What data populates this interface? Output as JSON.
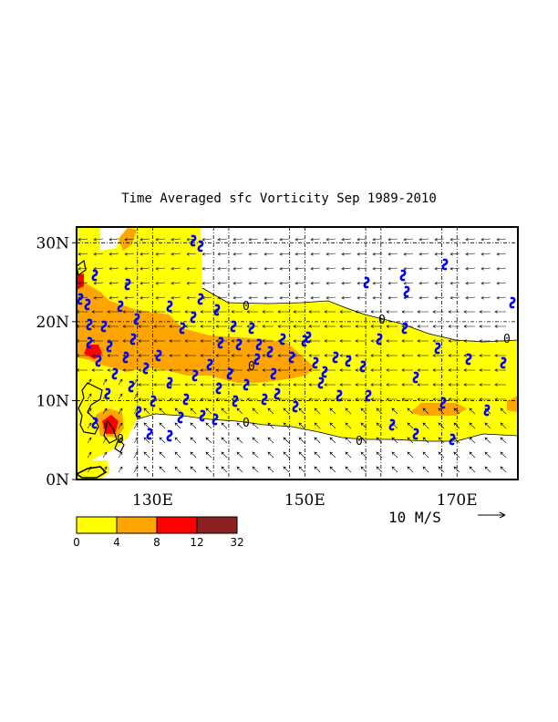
{
  "title": "Time Averaged sfc Vorticity  Sep 1989-2010",
  "map": {
    "lat_range": [
      0,
      32
    ],
    "lon_range": [
      120,
      178
    ],
    "y_ticks": [
      {
        "lat": 0,
        "label": "0N"
      },
      {
        "lat": 10,
        "label": "10N"
      },
      {
        "lat": 20,
        "label": "20N"
      },
      {
        "lat": 30,
        "label": "30N"
      }
    ],
    "x_ticks": [
      {
        "lon": 130,
        "label": "130E"
      },
      {
        "lon": 150,
        "label": "150E"
      },
      {
        "lon": 170,
        "label": "170E"
      }
    ],
    "grid_lons": [
      128,
      130,
      138,
      140,
      148,
      150,
      158,
      160,
      168,
      170
    ],
    "grid_lats": [
      10,
      20,
      30
    ],
    "contour_label": "0",
    "colors": {
      "yellow": "#ffff00",
      "orange": "#ffa500",
      "red": "#ff0000",
      "darkred": "#8b2222",
      "typhoon": "#0000ff"
    }
  },
  "legend": {
    "colors": [
      "#ffff00",
      "#ffa500",
      "#ff0000",
      "#8b2222"
    ],
    "labels": [
      "0",
      "4",
      "8",
      "12",
      "32"
    ]
  },
  "vector_reference": {
    "label": "10 M/S"
  }
}
